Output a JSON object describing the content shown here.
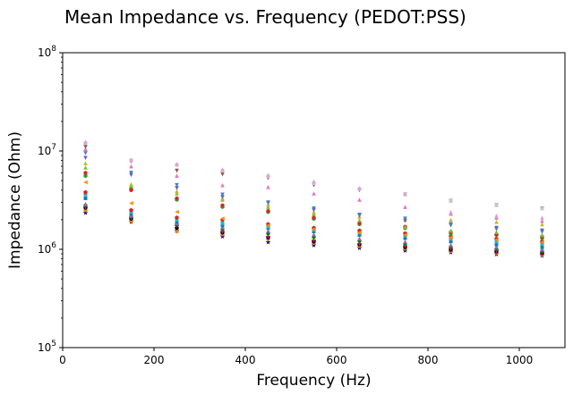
{
  "chart_data": {
    "type": "scatter",
    "title": "Mean Impedance vs. Frequency (PEDOT:PSS)",
    "xlabel": "Frequency (Hz)",
    "ylabel": "Impedance (Ohm)",
    "xlim": [
      0,
      1100
    ],
    "ylim": [
      100000,
      100000000
    ],
    "yscale": "log",
    "grid": false,
    "legend": "none",
    "xticks": [
      {
        "value": 0,
        "label": "0"
      },
      {
        "value": 200,
        "label": "200"
      },
      {
        "value": 400,
        "label": "400"
      },
      {
        "value": 600,
        "label": "600"
      },
      {
        "value": 800,
        "label": "800"
      },
      {
        "value": 1000,
        "label": "1000"
      }
    ],
    "yticks": [
      {
        "value": 100000,
        "base": "10",
        "exp": "5"
      },
      {
        "value": 1000000,
        "base": "10",
        "exp": "6"
      },
      {
        "value": 10000000,
        "base": "10",
        "exp": "7"
      },
      {
        "value": 100000000,
        "base": "10",
        "exp": "8"
      }
    ],
    "x": [
      50,
      150,
      250,
      350,
      450,
      550,
      650,
      750,
      850,
      950,
      1050
    ],
    "series": [
      {
        "color": "#191970",
        "marker": "star",
        "values": [
          2350000,
          1900000,
          1550000,
          1350000,
          1180000,
          1100000,
          1030000,
          970000,
          930000,
          890000,
          860000
        ]
      },
      {
        "color": "#ff7f0e",
        "marker": "circle",
        "values": [
          2500000,
          1950000,
          1520000,
          1420000,
          1270000,
          1160000,
          1080000,
          1020000,
          960000,
          920000,
          880000
        ]
      },
      {
        "color": "#7f7f7f",
        "marker": "triangle-down",
        "values": [
          2600000,
          2000000,
          1600000,
          1450000,
          1290000,
          1180000,
          1100000,
          1030000,
          980000,
          940000,
          900000
        ]
      },
      {
        "color": "#000000",
        "marker": "circle",
        "values": [
          2650000,
          2050000,
          1650000,
          1480000,
          1320000,
          1200000,
          1120000,
          1050000,
          990000,
          950000,
          910000
        ]
      },
      {
        "color": "#c71585",
        "marker": "plus",
        "values": [
          2700000,
          2100000,
          1750000,
          1520000,
          1350000,
          1240000,
          1140000,
          1080000,
          1020000,
          970000,
          930000
        ]
      },
      {
        "color": "#008000",
        "marker": "circle",
        "values": [
          2800000,
          2150000,
          1800000,
          1600000,
          1450000,
          1330000,
          1220000,
          1130000,
          1060000,
          1010000,
          960000
        ]
      },
      {
        "color": "#9467bd",
        "marker": "triangle-up",
        "values": [
          2900000,
          2200000,
          1850000,
          1680000,
          1550000,
          1420000,
          1290000,
          1200000,
          1110000,
          1060000,
          1000000
        ]
      },
      {
        "color": "#1f77b4",
        "marker": "square",
        "values": [
          3300000,
          2300000,
          1900000,
          1750000,
          1650000,
          1520000,
          1400000,
          1300000,
          1200000,
          1120000,
          1050000
        ]
      },
      {
        "color": "#17becf",
        "marker": "square",
        "values": [
          3600000,
          2400000,
          2000000,
          1850000,
          1700000,
          1580000,
          1480000,
          1380000,
          1280000,
          1200000,
          1130000
        ]
      },
      {
        "color": "#d62728",
        "marker": "pentagon",
        "values": [
          3800000,
          2500000,
          2100000,
          2000000,
          1800000,
          1650000,
          1550000,
          1450000,
          1350000,
          1280000,
          1200000
        ]
      },
      {
        "color": "#ff8c00",
        "marker": "triangle-left",
        "values": [
          4800000,
          2950000,
          2400000,
          2050000,
          1750000,
          1600000,
          1480000,
          1400000,
          1320000,
          1250000,
          1180000
        ]
      },
      {
        "color": "#2ca02c",
        "marker": "hexagon",
        "values": [
          5600000,
          4100000,
          3200000,
          2700000,
          2400000,
          2050000,
          1800000,
          1650000,
          1450000,
          1400000,
          1300000
        ]
      },
      {
        "color": "#d62728",
        "marker": "circle",
        "values": [
          6000000,
          4000000,
          3300000,
          2800000,
          2450000,
          2100000,
          1850000,
          1700000,
          1500000,
          1420000,
          1350000
        ]
      },
      {
        "color": "#7fbf2f",
        "marker": "triangle-up",
        "values": [
          6800000,
          4500000,
          3700000,
          3200000,
          2700000,
          2300000,
          1980000,
          1700000,
          1550000,
          1500000,
          1400000
        ]
      },
      {
        "color": "#bcbd22",
        "marker": "triangle-up",
        "values": [
          7500000,
          4600000,
          3900000,
          3300000,
          2850000,
          2400000,
          2150000,
          2000000,
          2000000,
          1900000,
          1800000
        ]
      },
      {
        "color": "#6a5acd",
        "marker": "triangle-down",
        "values": [
          8500000,
          5700000,
          4200000,
          3400000,
          2950000,
          2500000,
          2200000,
          1950000,
          1800000,
          1650000,
          1550000
        ]
      },
      {
        "color": "#4682b4",
        "marker": "triangle-down",
        "values": [
          9500000,
          6000000,
          4500000,
          3600000,
          3000000,
          2600000,
          2250000,
          2050000,
          1750000,
          1600000,
          1500000
        ]
      },
      {
        "color": "#e377c2",
        "marker": "triangle-up",
        "values": [
          10500000,
          7000000,
          5600000,
          4500000,
          4300000,
          3700000,
          3200000,
          2700000,
          2300000,
          2100000,
          1950000
        ]
      },
      {
        "color": "#8c564b",
        "marker": "triangle-down",
        "values": [
          11000000,
          7800000,
          6300000,
          5800000,
          5300000,
          4500000,
          4000000,
          3600000,
          3100000,
          2800000,
          2600000
        ]
      },
      {
        "color": "#c7c7c7",
        "marker": "square",
        "values": [
          12000000,
          8000000,
          7200000,
          6300000,
          5500000,
          4700000,
          4100000,
          3600000,
          3100000,
          2800000,
          2600000
        ]
      },
      {
        "color": "#dda0dd",
        "marker": "triangle-up",
        "values": [
          12400000,
          8200000,
          7400000,
          6500000,
          5700000,
          4900000,
          4200000,
          3700000,
          2400000,
          2200000,
          2100000
        ]
      }
    ]
  }
}
